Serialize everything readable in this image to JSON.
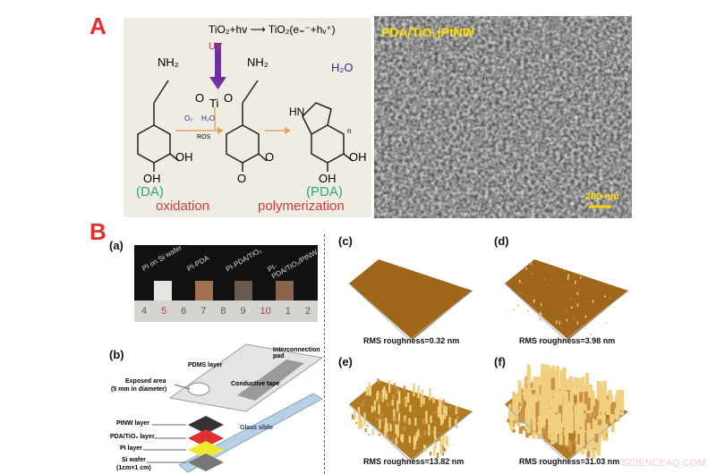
{
  "panelA": {
    "label": "A",
    "equation": "TiO₂+hv ⟶ TiO₂(e₌⁻+hᵥ⁺)",
    "uv": "UV",
    "o2": "O₂",
    "h2o_small": "H₂O",
    "ros": "ROS",
    "h2o": "H₂O",
    "nh2": "NH₂",
    "hn": "HN",
    "oh": "OH",
    "o": "O",
    "ti": "Ti",
    "n": "n",
    "da": "(DA)",
    "pda": "(PDA)",
    "oxidation": "oxidation",
    "polymerization": "polymerization",
    "sem_title": "PDA/TiO₂/PtNW",
    "scale_bar": "200 nm"
  },
  "panelB": {
    "label": "B",
    "a": {
      "label": "(a)",
      "samples": [
        "PI on Si wafer",
        "PI-PDA",
        "PI-PDA/TiO₂",
        "PI-PDA/TiO₂/PtNW"
      ],
      "ruler": [
        "4",
        "5",
        "6",
        "7",
        "8",
        "9",
        "10",
        "1",
        "2"
      ]
    },
    "b": {
      "label": "(b)",
      "pdms": "PDMS layer",
      "pad": "Interconnection pad",
      "exposed": "Exposed area",
      "exposed_sub": "(5 mm in diameter)",
      "tape": "Conductive tape",
      "ptnw": "PtNW layer",
      "pdatio2": "PDA/TiO₂ layer",
      "pi": "PI layer",
      "si": "Si wafer",
      "si_sub": "(1cm×1 cm)",
      "glass": "Glass slide"
    },
    "afm": [
      {
        "label": "(c)",
        "rms": "RMS roughness=0.32 nm",
        "roughness_nm": 0.32
      },
      {
        "label": "(d)",
        "rms": "RMS roughness=3.98 nm",
        "roughness_nm": 3.98
      },
      {
        "label": "(e)",
        "rms": "RMS roughness=13.82 nm",
        "roughness_nm": 13.82
      },
      {
        "label": "(f)",
        "rms": "RMS roughness=31.03 nm",
        "roughness_nm": 31.03
      }
    ]
  },
  "watermark": "SCIENCEAQ.COM",
  "colors": {
    "label_red": "#e03030",
    "green": "#2eaa6a",
    "red_text": "#d03838",
    "purple": "#7030a0",
    "orange": "#e8a060",
    "afm": "#a0661a"
  }
}
